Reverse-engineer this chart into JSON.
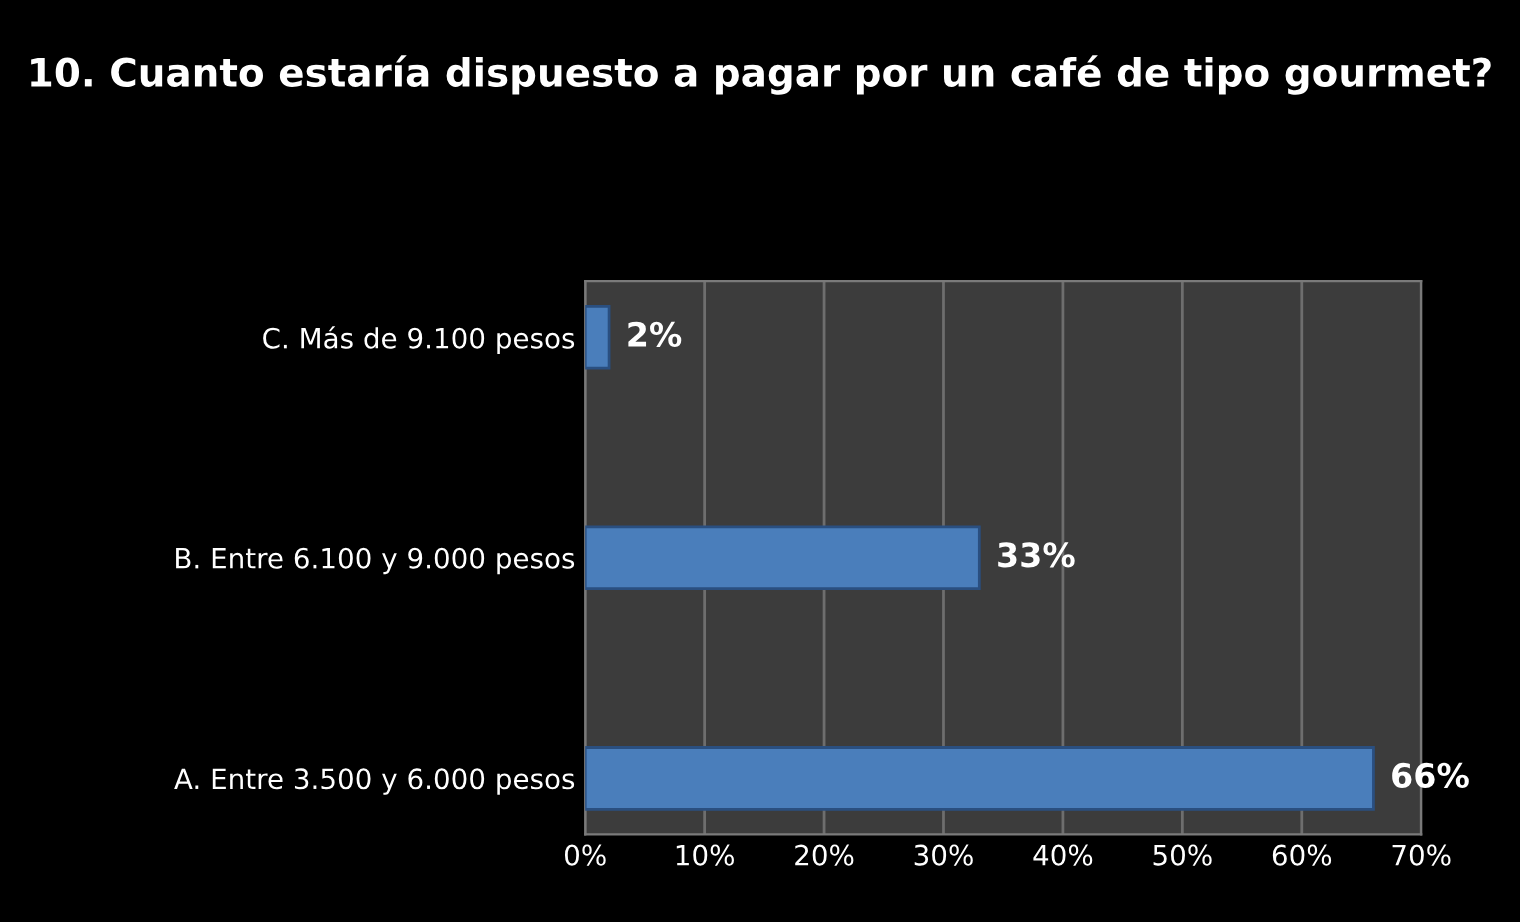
{
  "chart_data": {
    "type": "bar",
    "orientation": "horizontal",
    "title": "10. Cuanto estaría dispuesto a pagar por un café de tipo gourmet?",
    "categories": [
      "C. Más de 9.100 pesos",
      "B. Entre 6.100 y 9.000 pesos",
      "A. Entre 3.500 y 6.000 pesos"
    ],
    "values": [
      2,
      33,
      66
    ],
    "value_labels": [
      "2%",
      "33%",
      "66%"
    ],
    "color": "#4a7ebb",
    "xlim": [
      0,
      70
    ],
    "xticks": [
      {
        "value": 0,
        "label": "0%"
      },
      {
        "value": 10,
        "label": "10%"
      },
      {
        "value": 20,
        "label": "20%"
      },
      {
        "value": 30,
        "label": "30%"
      },
      {
        "value": 40,
        "label": "40%"
      },
      {
        "value": 50,
        "label": "50%"
      },
      {
        "value": 60,
        "label": "60%"
      },
      {
        "value": 70,
        "label": "70%"
      }
    ],
    "grid": "x",
    "legend": false
  }
}
